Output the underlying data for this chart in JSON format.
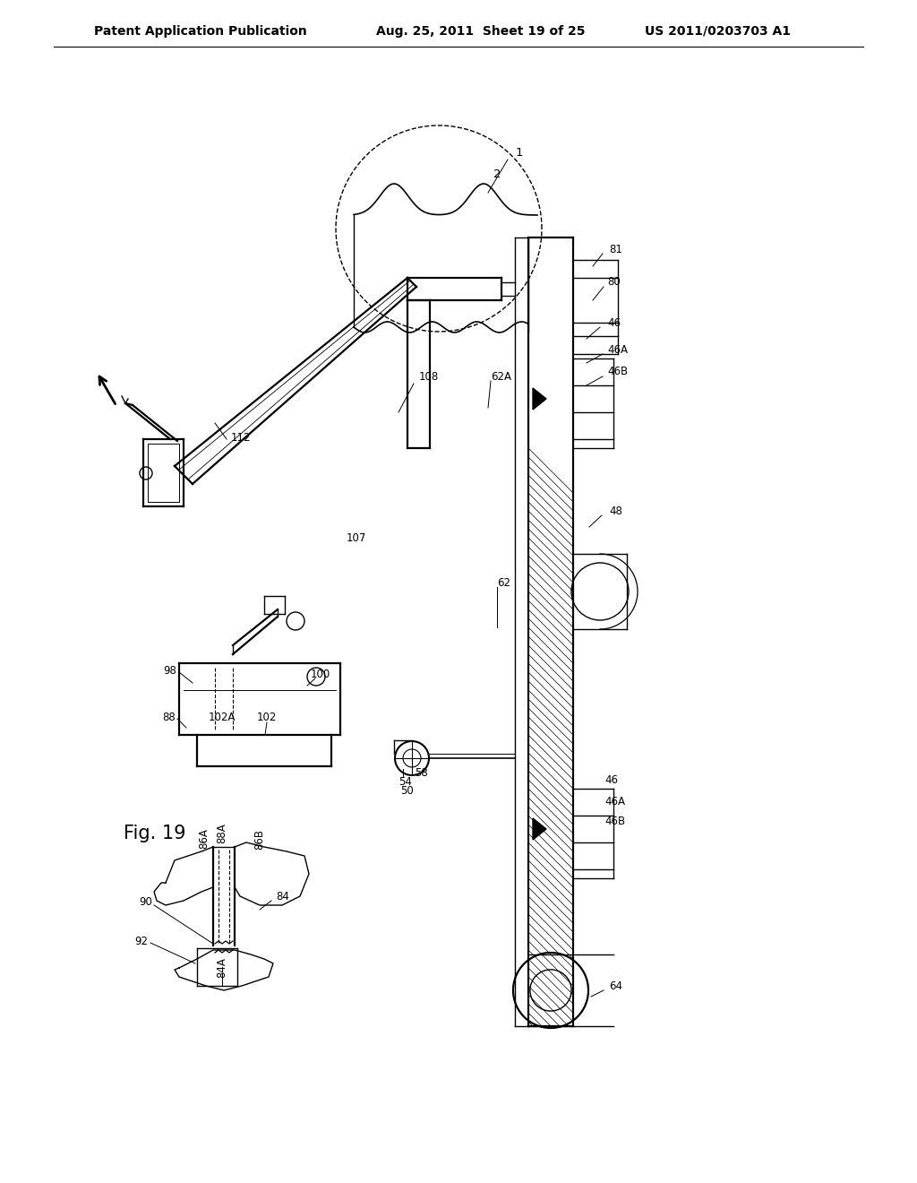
{
  "title_left": "Patent Application Publication",
  "title_mid": "Aug. 25, 2011  Sheet 19 of 25",
  "title_right": "US 2011/0203703 A1",
  "fig_label": "Fig. 19",
  "background": "#ffffff",
  "line_color": "#000000",
  "header_fontsize": 10,
  "fig_label_fontsize": 15
}
